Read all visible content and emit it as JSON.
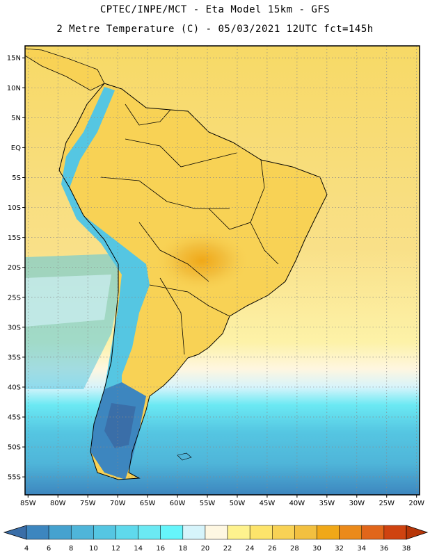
{
  "title_line1": "CPTEC/INPE/MCT -  Eta Model 15km - GFS",
  "title_line2": "2 Metre Temperature (C) - 05/03/2021 12UTC fct=145h",
  "lat_labels": [
    "15N",
    "10N",
    "5N",
    "EQ",
    "5S",
    "10S",
    "15S",
    "20S",
    "25S",
    "30S",
    "35S",
    "40S",
    "45S",
    "50S",
    "55S"
  ],
  "lon_labels": [
    "85W",
    "80W",
    "75W",
    "70W",
    "65W",
    "60W",
    "55W",
    "50W",
    "45W",
    "40W",
    "35W",
    "30W",
    "25W",
    "20W"
  ],
  "colorbar": {
    "ticks": [
      "4",
      "6",
      "8",
      "10",
      "12",
      "14",
      "16",
      "18",
      "20",
      "22",
      "24",
      "26",
      "28",
      "30",
      "32",
      "34",
      "36",
      "38"
    ],
    "colors": [
      "#3a6ea8",
      "#3d86bf",
      "#45a2cf",
      "#4fb5d9",
      "#55c6e2",
      "#5fd9ec",
      "#6be9f3",
      "#66f5fb",
      "#d6f4fb",
      "#fef7e2",
      "#fef28e",
      "#fde46b",
      "#f8d255",
      "#f2c040",
      "#f0a818",
      "#eb8a1a",
      "#e1661a",
      "#cf4310",
      "#b73608"
    ],
    "unit": "C"
  },
  "map": {
    "extent": {
      "lon_min": -85.5,
      "lon_max": -19.5,
      "lat_min": -58,
      "lat_max": 17
    },
    "grid_step_deg": 5
  }
}
